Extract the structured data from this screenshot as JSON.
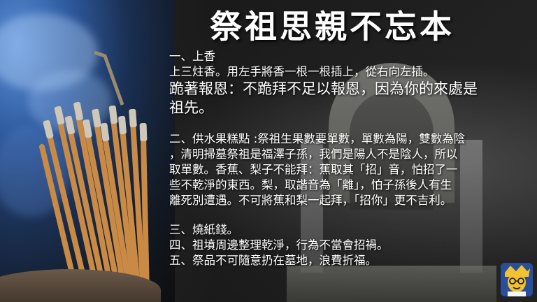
{
  "title": "祭祖思親不忘本",
  "sections": {
    "s1_heading": "一、上香",
    "s1_line1": "上三炷香。用左手將香一根一根插上，從右向左插。",
    "s1_emph1": "跪著報恩：不跪拜不足以報恩，因為你的來處是",
    "s1_emph2": "祖先。",
    "s2_line1": "二、供水果糕點 :祭祖生果數要單數，單數為陽，雙數為陰",
    "s2_line2": "，清明掃墓祭祖是福澤子孫，我們是陽人不是陰人，所以",
    "s2_line3": "取單數。香蕉、梨子不能拜：蕉取其「招」音，怕招了一",
    "s2_line4": "些不乾淨的東西。梨，取諧音為「離」，怕子孫後人有生",
    "s2_line5": "離死別遭遇。不可將蕉和梨一起拜，「招你」更不吉利。",
    "s3": "三、燒紙錢。",
    "s4": "四、祖墳周邊整理乾淨，行為不當會招禍。",
    "s5": "五、祭品不可隨意扔在墓地，浪費折福。"
  },
  "icons": {
    "photo": "incense-sticks-photo",
    "background": "tomb-photo",
    "avatar": "cartoon-avatar-icon"
  },
  "colors": {
    "incense": "#c98a45",
    "smoke": "#7fb0ec",
    "avatar_bg": "#2a4f9a",
    "avatar_face": "#f2c230"
  }
}
